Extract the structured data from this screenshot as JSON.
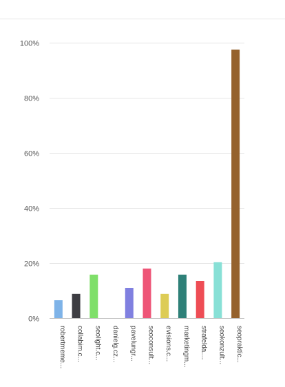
{
  "chart_data": {
    "type": "bar",
    "title": "",
    "xlabel": "",
    "ylabel": "",
    "ylim": [
      0,
      100
    ],
    "y_ticks": [
      "0%",
      "20%",
      "40%",
      "60%",
      "80%",
      "100%"
    ],
    "y_tick_values": [
      0,
      20,
      40,
      60,
      80,
      100
    ],
    "grid": true,
    "legend": "none",
    "categories": [
      "robertmeme...",
      "collabim.c...",
      "seolight.c...",
      "danielg.cz...",
      "pavelungr...",
      "seoconsult...",
      "evisions.c...",
      "marketingm...",
      "strafelda....",
      "seokonzult...",
      "seopraktic..."
    ],
    "values": [
      6.5,
      8.8,
      15.8,
      0,
      11,
      18,
      8.8,
      15.8,
      13.5,
      20.3,
      97.5
    ],
    "colors": [
      "#7eb3e8",
      "#3d3d42",
      "#7fdf6a",
      "#ffffff",
      "#8080e0",
      "#ee5577",
      "#ddcc55",
      "#2e8078",
      "#ee4d55",
      "#88e0d6",
      "#95622e"
    ]
  }
}
